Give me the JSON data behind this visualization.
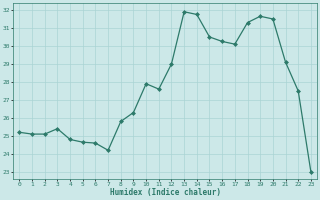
{
  "x": [
    0,
    1,
    2,
    3,
    4,
    5,
    6,
    7,
    8,
    9,
    10,
    11,
    12,
    13,
    14,
    15,
    16,
    17,
    18,
    19,
    20,
    21,
    22,
    23
  ],
  "y": [
    25.2,
    25.1,
    25.1,
    25.4,
    24.8,
    24.65,
    24.6,
    24.2,
    25.8,
    26.3,
    27.9,
    27.6,
    29.0,
    31.9,
    31.75,
    30.5,
    30.25,
    30.1,
    31.3,
    31.65,
    31.5,
    29.1,
    27.5,
    23.0
  ],
  "line_color": "#2d7a6a",
  "marker": "D",
  "marker_size": 2.0,
  "bg_color": "#cce8e8",
  "grid_color": "#aad4d4",
  "xlabel": "Humidex (Indice chaleur)",
  "ylim": [
    22.6,
    32.4
  ],
  "xlim": [
    -0.5,
    23.5
  ],
  "yticks": [
    23,
    24,
    25,
    26,
    27,
    28,
    29,
    30,
    31,
    32
  ],
  "xticks": [
    0,
    1,
    2,
    3,
    4,
    5,
    6,
    7,
    8,
    9,
    10,
    11,
    12,
    13,
    14,
    15,
    16,
    17,
    18,
    19,
    20,
    21,
    22,
    23
  ]
}
